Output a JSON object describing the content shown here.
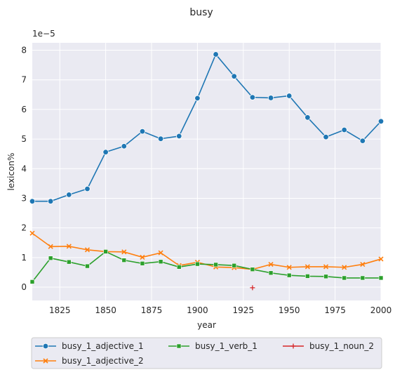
{
  "chart_data": {
    "type": "line",
    "title": "busy",
    "xlabel": "year",
    "ylabel": "lexicon%",
    "y_multiplier_label": "1e−5",
    "xlim": [
      1810,
      2000
    ],
    "ylim": [
      -0.45,
      8.25
    ],
    "x_ticks": [
      1825,
      1850,
      1875,
      1900,
      1925,
      1950,
      1975,
      2000
    ],
    "y_ticks": [
      0,
      1,
      2,
      3,
      4,
      5,
      6,
      7,
      8
    ],
    "grid": true,
    "legend_position": "bottom",
    "series": [
      {
        "name": "busy_1_adjective_1",
        "color": "#1f77b4",
        "marker": "circle",
        "x": [
          1810,
          1820,
          1830,
          1840,
          1850,
          1860,
          1870,
          1880,
          1890,
          1900,
          1910,
          1920,
          1930,
          1940,
          1950,
          1960,
          1970,
          1980,
          1990,
          2000
        ],
        "values": [
          2.9,
          2.9,
          3.12,
          3.32,
          4.56,
          4.76,
          5.26,
          5.01,
          5.1,
          6.38,
          7.86,
          7.12,
          6.41,
          6.39,
          6.46,
          5.73,
          5.07,
          5.31,
          4.94,
          5.6
        ]
      },
      {
        "name": "busy_1_adjective_2",
        "color": "#ff7f0e",
        "marker": "x",
        "x": [
          1810,
          1820,
          1830,
          1840,
          1850,
          1860,
          1870,
          1880,
          1890,
          1900,
          1910,
          1920,
          1930,
          1940,
          1950,
          1960,
          1970,
          1980,
          1990,
          2000
        ],
        "values": [
          1.82,
          1.37,
          1.38,
          1.26,
          1.2,
          1.19,
          1.01,
          1.16,
          0.73,
          0.84,
          0.68,
          0.66,
          0.6,
          0.77,
          0.67,
          0.69,
          0.69,
          0.67,
          0.77,
          0.95
        ]
      },
      {
        "name": "busy_1_verb_1",
        "color": "#2ca02c",
        "marker": "square",
        "x": [
          1810,
          1820,
          1830,
          1840,
          1850,
          1860,
          1870,
          1880,
          1890,
          1900,
          1910,
          1920,
          1930,
          1940,
          1950,
          1960,
          1970,
          1980,
          1990,
          2000
        ],
        "values": [
          0.18,
          0.98,
          0.85,
          0.71,
          1.2,
          0.91,
          0.8,
          0.86,
          0.68,
          0.78,
          0.76,
          0.73,
          0.6,
          0.48,
          0.4,
          0.37,
          0.36,
          0.31,
          0.31,
          0.31
        ]
      },
      {
        "name": "busy_1_noun_2",
        "color": "#d62728",
        "marker": "plus",
        "x": [
          1930
        ],
        "values": [
          -0.02
        ]
      }
    ]
  }
}
